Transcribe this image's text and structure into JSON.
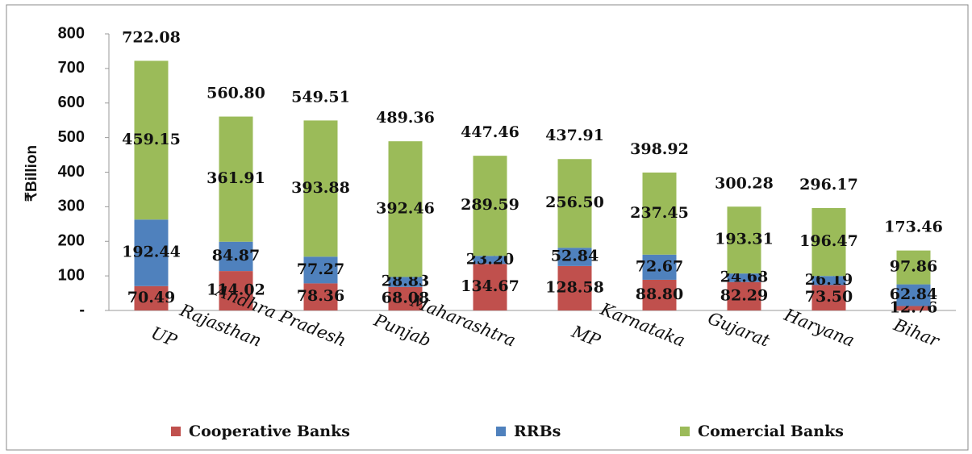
{
  "chart_data": {
    "type": "stacked_bar",
    "y_label": "₹Billion",
    "categories": [
      "UP",
      "Rajasthan",
      "Andhra Pradesh",
      "Punjab",
      "Maharashtra",
      "MP",
      "Karnataka",
      "Gujarat",
      "Haryana",
      "Bihar"
    ],
    "series": [
      {
        "name": "Cooperative Banks",
        "color": "#c0504d",
        "values": [
          70.49,
          114.02,
          78.36,
          68.08,
          134.67,
          128.58,
          88.8,
          82.29,
          73.5,
          12.76
        ],
        "value_labels": [
          "70.49",
          "114.02",
          "78.36",
          "68.08",
          "134.67",
          "128.58",
          "88.80",
          "82.29",
          "73.50",
          "12.76"
        ]
      },
      {
        "name": "RRBs",
        "color": "#4f81bd",
        "values": [
          192.44,
          84.87,
          77.27,
          28.83,
          23.2,
          52.84,
          72.67,
          24.68,
          26.19,
          62.84
        ],
        "value_labels": [
          "192.44",
          "84.87",
          "77.27",
          "28.83",
          "23.20",
          "52.84",
          "72.67",
          "24.68",
          "26.19",
          "62.84"
        ]
      },
      {
        "name": "Comercial Banks",
        "color": "#9bbb59",
        "values": [
          459.15,
          361.91,
          393.88,
          392.46,
          289.59,
          256.5,
          237.45,
          193.31,
          196.47,
          97.86
        ],
        "value_labels": [
          "459.15",
          "361.91",
          "393.88",
          "392.46",
          "289.59",
          "256.50",
          "237.45",
          "193.31",
          "196.47",
          "97.86"
        ]
      }
    ],
    "totals": [
      722.08,
      560.8,
      549.51,
      489.36,
      447.46,
      437.91,
      398.92,
      300.28,
      296.17,
      173.46
    ],
    "total_labels": [
      "722.08",
      "560.80",
      "549.51",
      "489.36",
      "447.46",
      "437.91",
      "398.92",
      "300.28",
      "296.17",
      "173.46"
    ],
    "ylim": [
      0,
      800
    ],
    "yticks": [
      {
        "value": 0,
        "label": "-"
      },
      100,
      200,
      300,
      400,
      500,
      600,
      700,
      800
    ]
  }
}
